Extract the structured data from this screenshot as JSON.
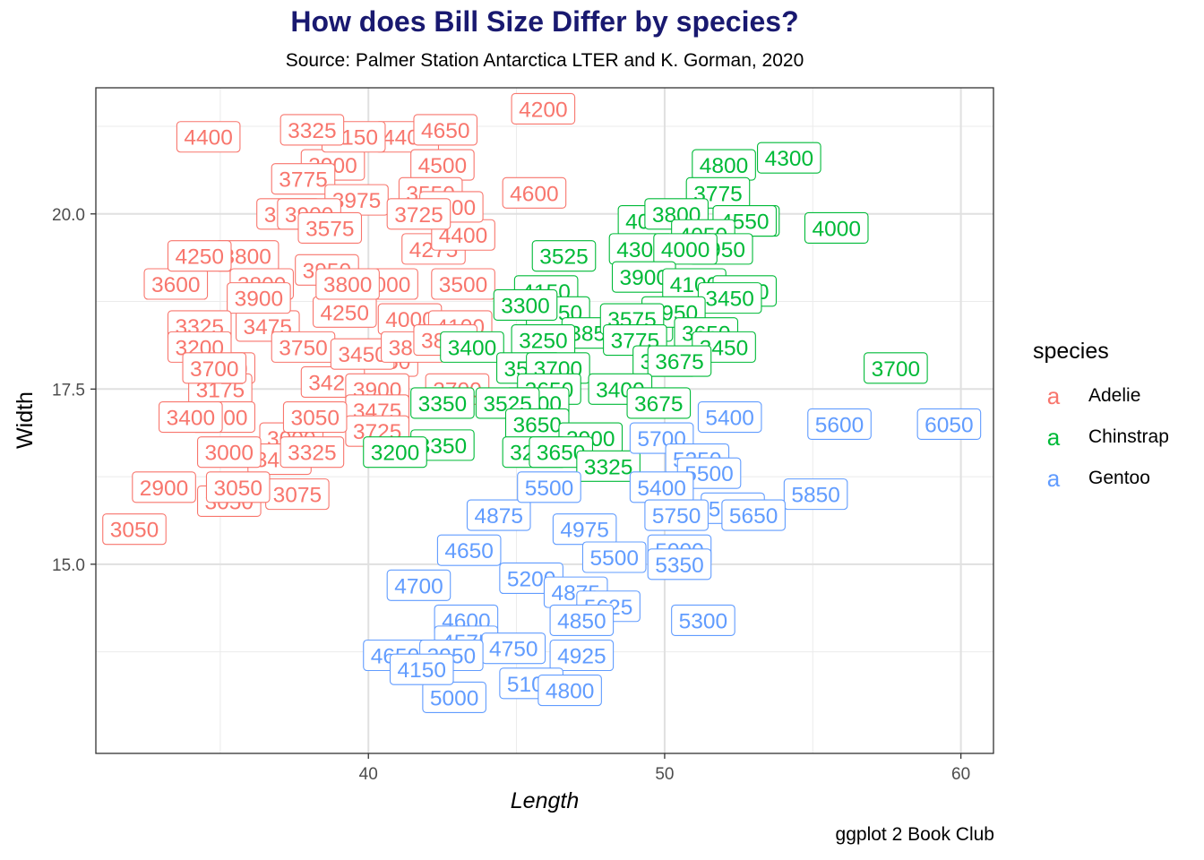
{
  "title": "How does Bill Size Differ by species?",
  "subtitle": "Source: Palmer Station Antarctica LTER and K. Gorman, 2020",
  "caption": "ggplot 2 Book Club",
  "legend": {
    "title": "species",
    "key_glyph": "a",
    "items": [
      {
        "name": "Adelie",
        "color": "#F8766D"
      },
      {
        "name": "Chinstrap",
        "color": "#00BA38"
      },
      {
        "name": "Gentoo",
        "color": "#619CFF"
      }
    ]
  },
  "chart_data": {
    "type": "scatter",
    "geom": "label",
    "title": "How does Bill Size Differ by species?",
    "subtitle": "Source: Palmer Station Antarctica LTER and K. Gorman, 2020",
    "caption": "ggplot 2 Book Club",
    "xlabel": "Length",
    "ylabel": "Width",
    "xlim": [
      30.8,
      61.1
    ],
    "ylim": [
      12.3,
      21.8
    ],
    "xticks": [
      40,
      50,
      60
    ],
    "xtick_labels": [
      "40",
      "50",
      "60"
    ],
    "yticks": [
      15.0,
      17.5,
      20.0
    ],
    "ytick_labels": [
      "15.0",
      "17.5",
      "20.0"
    ],
    "grid": true,
    "legend_position": "right",
    "series": [
      {
        "name": "Adelie",
        "color": "#F8766D",
        "points": [
          {
            "x": 45.6,
            "y": 20.3,
            "label": "4600"
          },
          {
            "x": 34.6,
            "y": 21.1,
            "label": "4400"
          },
          {
            "x": 41.3,
            "y": 21.1,
            "label": "4400"
          },
          {
            "x": 38.8,
            "y": 20.7,
            "label": "3900"
          },
          {
            "x": 37.8,
            "y": 20.5,
            "label": "3775"
          },
          {
            "x": 42.5,
            "y": 20.7,
            "label": "4500"
          },
          {
            "x": 39.6,
            "y": 20.2,
            "label": "3975"
          },
          {
            "x": 37.3,
            "y": 20.0,
            "label": "3500"
          },
          {
            "x": 43.2,
            "y": 19.0,
            "label": "3500"
          },
          {
            "x": 35.9,
            "y": 19.4,
            "label": "3800"
          },
          {
            "x": 33.5,
            "y": 19.0,
            "label": "3600"
          },
          {
            "x": 38.6,
            "y": 19.2,
            "label": "3950"
          },
          {
            "x": 40.6,
            "y": 19.0,
            "label": "4000"
          },
          {
            "x": 42.2,
            "y": 19.5,
            "label": "4275"
          },
          {
            "x": 39.2,
            "y": 18.6,
            "label": "4250"
          },
          {
            "x": 41.4,
            "y": 18.5,
            "label": "4000"
          },
          {
            "x": 36.6,
            "y": 18.4,
            "label": "3475"
          },
          {
            "x": 37.8,
            "y": 18.1,
            "label": "3750"
          },
          {
            "x": 40.6,
            "y": 17.9,
            "label": "4250"
          },
          {
            "x": 35.1,
            "y": 17.8,
            "label": "3450"
          },
          {
            "x": 38.8,
            "y": 17.6,
            "label": "3425"
          },
          {
            "x": 35.0,
            "y": 17.5,
            "label": "3175"
          },
          {
            "x": 35.1,
            "y": 17.1,
            "label": "3700"
          },
          {
            "x": 37.4,
            "y": 16.8,
            "label": "3000"
          },
          {
            "x": 37.0,
            "y": 16.5,
            "label": "3400"
          },
          {
            "x": 32.1,
            "y": 15.5,
            "label": "3050"
          },
          {
            "x": 33.1,
            "y": 16.1,
            "label": "2900"
          },
          {
            "x": 35.3,
            "y": 15.9,
            "label": "3050"
          },
          {
            "x": 37.6,
            "y": 16.0,
            "label": "3075"
          },
          {
            "x": 45.9,
            "y": 21.5,
            "label": "4200"
          },
          {
            "x": 43.2,
            "y": 19.7,
            "label": "4400"
          },
          {
            "x": 39.5,
            "y": 21.1,
            "label": "4150"
          },
          {
            "x": 42.6,
            "y": 21.2,
            "label": "4650"
          },
          {
            "x": 38.1,
            "y": 21.2,
            "label": "3325"
          },
          {
            "x": 42.1,
            "y": 20.3,
            "label": "3550"
          },
          {
            "x": 42.8,
            "y": 20.1,
            "label": "3600"
          },
          {
            "x": 41.7,
            "y": 20.0,
            "label": "3725"
          },
          {
            "x": 38.0,
            "y": 20.0,
            "label": "3900"
          },
          {
            "x": 38.7,
            "y": 19.8,
            "label": "3575"
          },
          {
            "x": 34.3,
            "y": 19.4,
            "label": "4250"
          },
          {
            "x": 36.4,
            "y": 19.0,
            "label": "3800"
          },
          {
            "x": 39.3,
            "y": 19.0,
            "label": "3800"
          },
          {
            "x": 36.3,
            "y": 18.8,
            "label": "3900"
          },
          {
            "x": 34.3,
            "y": 18.4,
            "label": "3325"
          },
          {
            "x": 34.3,
            "y": 18.1,
            "label": "3200"
          },
          {
            "x": 34.8,
            "y": 17.8,
            "label": "3700"
          },
          {
            "x": 39.8,
            "y": 18.0,
            "label": "3450"
          },
          {
            "x": 41.5,
            "y": 18.1,
            "label": "3800"
          },
          {
            "x": 43.1,
            "y": 18.4,
            "label": "4100"
          },
          {
            "x": 42.6,
            "y": 18.2,
            "label": "3875"
          },
          {
            "x": 43.0,
            "y": 17.5,
            "label": "3700"
          },
          {
            "x": 40.3,
            "y": 17.5,
            "label": "3900"
          },
          {
            "x": 40.3,
            "y": 17.2,
            "label": "3475"
          },
          {
            "x": 40.3,
            "y": 16.9,
            "label": "3725"
          },
          {
            "x": 38.2,
            "y": 17.1,
            "label": "3050"
          },
          {
            "x": 34.0,
            "y": 17.1,
            "label": "3400"
          },
          {
            "x": 38.1,
            "y": 16.6,
            "label": "3325"
          },
          {
            "x": 35.3,
            "y": 16.6,
            "label": "3000"
          },
          {
            "x": 35.6,
            "y": 16.1,
            "label": "3050"
          }
        ]
      },
      {
        "name": "Chinstrap",
        "color": "#00BA38",
        "points": [
          {
            "x": 52.0,
            "y": 20.7,
            "label": "4800"
          },
          {
            "x": 54.2,
            "y": 20.8,
            "label": "4300"
          },
          {
            "x": 51.8,
            "y": 20.3,
            "label": "3775"
          },
          {
            "x": 49.5,
            "y": 19.9,
            "label": "4050"
          },
          {
            "x": 50.4,
            "y": 20.0,
            "label": "3800"
          },
          {
            "x": 52.8,
            "y": 19.9,
            "label": "4500"
          },
          {
            "x": 55.8,
            "y": 19.8,
            "label": "4000"
          },
          {
            "x": 52.7,
            "y": 19.9,
            "label": "4550"
          },
          {
            "x": 51.3,
            "y": 19.7,
            "label": "4050"
          },
          {
            "x": 49.2,
            "y": 19.5,
            "label": "4300"
          },
          {
            "x": 51.9,
            "y": 19.5,
            "label": "3950"
          },
          {
            "x": 50.7,
            "y": 19.5,
            "label": "4000"
          },
          {
            "x": 46.6,
            "y": 19.4,
            "label": "3525"
          },
          {
            "x": 49.3,
            "y": 19.1,
            "label": "3900"
          },
          {
            "x": 51.0,
            "y": 19.0,
            "label": "4100"
          },
          {
            "x": 52.7,
            "y": 18.9,
            "label": "4050"
          },
          {
            "x": 52.2,
            "y": 18.8,
            "label": "3450"
          },
          {
            "x": 46.0,
            "y": 18.9,
            "label": "4150"
          },
          {
            "x": 46.4,
            "y": 18.6,
            "label": "3450"
          },
          {
            "x": 45.3,
            "y": 18.7,
            "label": "3300"
          },
          {
            "x": 49.2,
            "y": 18.4,
            "label": "3775"
          },
          {
            "x": 50.3,
            "y": 18.6,
            "label": "3950"
          },
          {
            "x": 47.6,
            "y": 18.3,
            "label": "3850"
          },
          {
            "x": 48.9,
            "y": 18.5,
            "label": "3575"
          },
          {
            "x": 51.4,
            "y": 18.3,
            "label": "3650"
          },
          {
            "x": 49.0,
            "y": 18.2,
            "label": "3775"
          },
          {
            "x": 45.9,
            "y": 18.2,
            "label": "3250"
          },
          {
            "x": 43.5,
            "y": 18.1,
            "label": "3400"
          },
          {
            "x": 52.0,
            "y": 18.1,
            "label": "3450"
          },
          {
            "x": 50.0,
            "y": 17.9,
            "label": "3400"
          },
          {
            "x": 50.5,
            "y": 17.9,
            "label": "3675"
          },
          {
            "x": 45.4,
            "y": 17.8,
            "label": "3500"
          },
          {
            "x": 46.4,
            "y": 17.8,
            "label": "3700"
          },
          {
            "x": 57.8,
            "y": 17.8,
            "label": "3700"
          },
          {
            "x": 46.1,
            "y": 17.5,
            "label": "3650"
          },
          {
            "x": 48.5,
            "y": 17.5,
            "label": "3400"
          },
          {
            "x": 45.7,
            "y": 17.3,
            "label": "3600"
          },
          {
            "x": 42.5,
            "y": 17.3,
            "label": "3350"
          },
          {
            "x": 44.7,
            "y": 17.3,
            "label": "3525"
          },
          {
            "x": 49.8,
            "y": 17.3,
            "label": "3675"
          },
          {
            "x": 45.7,
            "y": 17.0,
            "label": "3650"
          },
          {
            "x": 47.5,
            "y": 16.8,
            "label": "3900"
          },
          {
            "x": 42.5,
            "y": 16.7,
            "label": "3350"
          },
          {
            "x": 40.9,
            "y": 16.6,
            "label": "3200"
          },
          {
            "x": 45.6,
            "y": 16.6,
            "label": "3250"
          },
          {
            "x": 46.5,
            "y": 16.6,
            "label": "3650"
          },
          {
            "x": 48.1,
            "y": 16.4,
            "label": "3325"
          }
        ]
      },
      {
        "name": "Gentoo",
        "color": "#619CFF",
        "points": [
          {
            "x": 55.9,
            "y": 17.0,
            "label": "5600"
          },
          {
            "x": 59.6,
            "y": 17.0,
            "label": "6050"
          },
          {
            "x": 52.2,
            "y": 17.1,
            "label": "5400"
          },
          {
            "x": 49.9,
            "y": 16.8,
            "label": "5700"
          },
          {
            "x": 51.1,
            "y": 16.5,
            "label": "5250"
          },
          {
            "x": 51.5,
            "y": 16.3,
            "label": "5500"
          },
          {
            "x": 49.9,
            "y": 16.1,
            "label": "5400"
          },
          {
            "x": 55.1,
            "y": 16.0,
            "label": "5850"
          },
          {
            "x": 52.3,
            "y": 15.8,
            "label": "5500"
          },
          {
            "x": 53.0,
            "y": 15.7,
            "label": "5650"
          },
          {
            "x": 50.4,
            "y": 15.7,
            "label": "5750"
          },
          {
            "x": 44.4,
            "y": 15.7,
            "label": "4875"
          },
          {
            "x": 47.3,
            "y": 15.5,
            "label": "4975"
          },
          {
            "x": 46.1,
            "y": 16.1,
            "label": "5500"
          },
          {
            "x": 43.4,
            "y": 15.2,
            "label": "4650"
          },
          {
            "x": 48.3,
            "y": 15.1,
            "label": "5500"
          },
          {
            "x": 50.5,
            "y": 15.2,
            "label": "5000"
          },
          {
            "x": 50.5,
            "y": 15.0,
            "label": "5350"
          },
          {
            "x": 41.7,
            "y": 14.7,
            "label": "4700"
          },
          {
            "x": 45.5,
            "y": 14.8,
            "label": "5200"
          },
          {
            "x": 47.0,
            "y": 14.6,
            "label": "4875"
          },
          {
            "x": 48.1,
            "y": 14.4,
            "label": "5625"
          },
          {
            "x": 51.3,
            "y": 14.2,
            "label": "5300"
          },
          {
            "x": 47.2,
            "y": 14.2,
            "label": "4850"
          },
          {
            "x": 43.3,
            "y": 14.2,
            "label": "4600"
          },
          {
            "x": 43.3,
            "y": 13.9,
            "label": "4575"
          },
          {
            "x": 40.9,
            "y": 13.7,
            "label": "4650"
          },
          {
            "x": 44.9,
            "y": 13.8,
            "label": "4750"
          },
          {
            "x": 47.2,
            "y": 13.7,
            "label": "4925"
          },
          {
            "x": 42.8,
            "y": 13.7,
            "label": "3950"
          },
          {
            "x": 45.5,
            "y": 13.3,
            "label": "5100"
          },
          {
            "x": 42.9,
            "y": 13.1,
            "label": "5000"
          },
          {
            "x": 46.8,
            "y": 13.2,
            "label": "4800"
          },
          {
            "x": 41.8,
            "y": 13.5,
            "label": "4150"
          }
        ]
      }
    ]
  }
}
